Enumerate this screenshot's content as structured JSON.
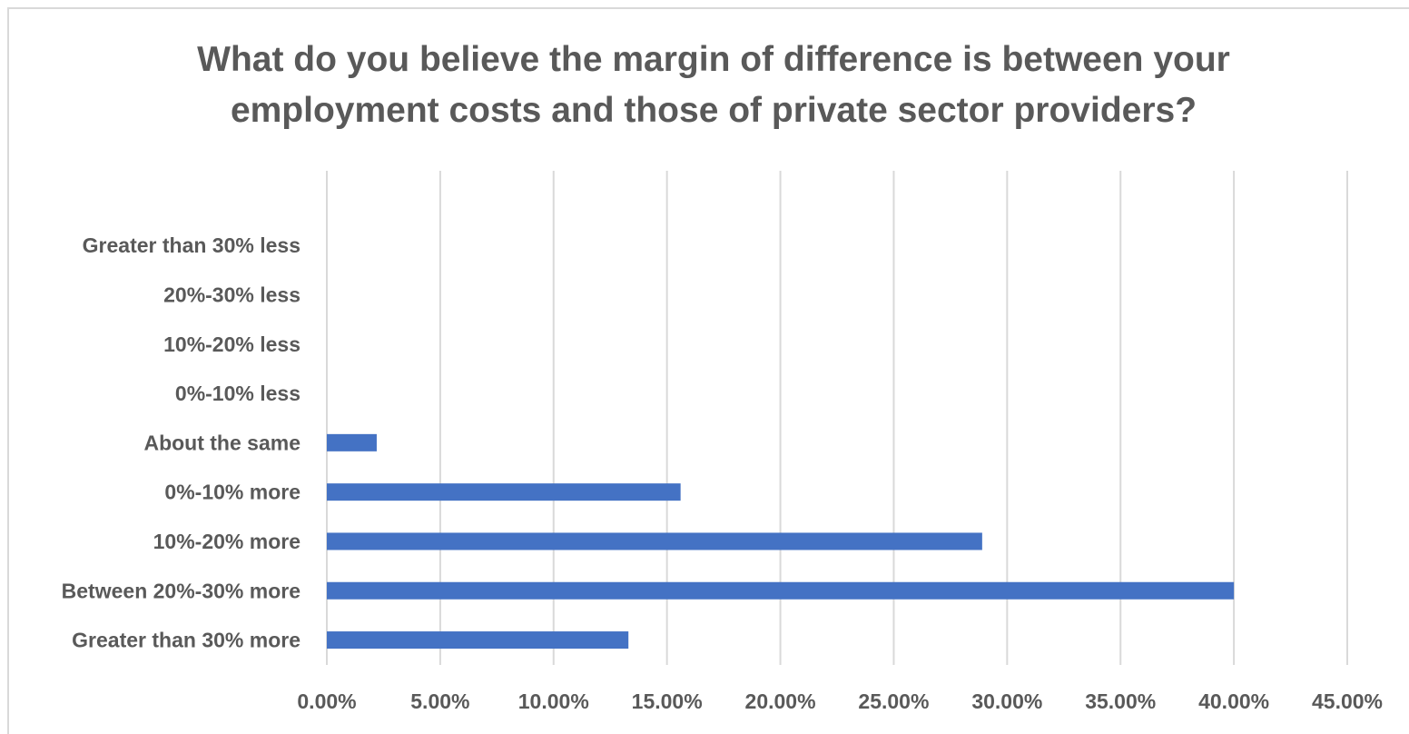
{
  "chart_data": {
    "type": "bar",
    "orientation": "horizontal",
    "title_lines": [
      "What do you believe the margin of difference is between your",
      "employment costs and those of private sector providers?"
    ],
    "categories": [
      "Greater than 30% less",
      "20%-30% less",
      "10%-20% less",
      "0%-10% less",
      "About the same",
      "0%-10% more",
      "10%-20% more",
      "Between 20%-30% more",
      "Greater than 30% more"
    ],
    "values": [
      0,
      0,
      0,
      0,
      2.2,
      15.6,
      28.9,
      40.0,
      13.3
    ],
    "xlim": [
      0,
      45
    ],
    "xticks": [
      0,
      5,
      10,
      15,
      20,
      25,
      30,
      35,
      40,
      45
    ],
    "xtick_labels": [
      "0.00%",
      "5.00%",
      "10.00%",
      "15.00%",
      "20.00%",
      "25.00%",
      "30.00%",
      "35.00%",
      "40.00%",
      "45.00%"
    ],
    "grid": true,
    "legend": "none",
    "bar_color": "#4472c4"
  }
}
